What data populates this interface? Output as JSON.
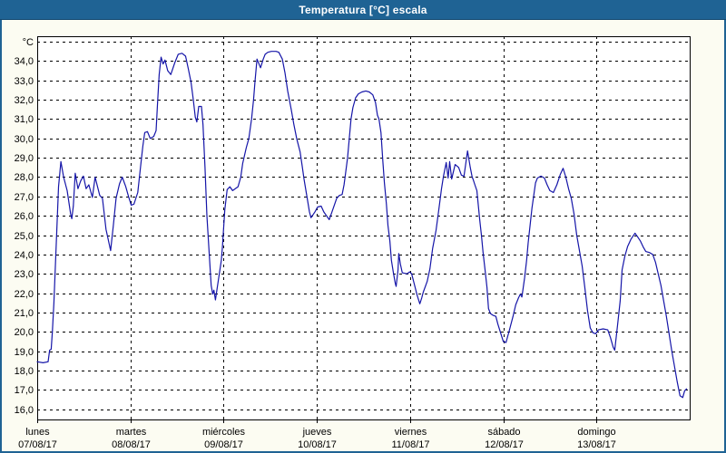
{
  "window": {
    "title": "Temperatura [°C] escala"
  },
  "colors": {
    "titlebar_bg": "#1f6394",
    "titlebar_text": "#ffffff",
    "window_border": "#1f6394",
    "window_bg": "#fcfcf2",
    "plot_bg": "#ffffff",
    "grid": "#000000",
    "frame": "#000000",
    "line": "#1515a8",
    "label_text": "#000000"
  },
  "chart_data": {
    "type": "line",
    "title": "Temperatura [°C] escala",
    "ylabel": "°C",
    "ylim": [
      15.5,
      35.3
    ],
    "xlim_hours": [
      0,
      168
    ],
    "grid": "dashed",
    "legend": "none",
    "yticks": [
      {
        "v": 35,
        "label": "°C"
      },
      {
        "v": 34,
        "label": "34,0"
      },
      {
        "v": 33,
        "label": "33,0"
      },
      {
        "v": 32,
        "label": "32,0"
      },
      {
        "v": 31,
        "label": "31,0"
      },
      {
        "v": 30,
        "label": "30,0"
      },
      {
        "v": 29,
        "label": "29,0"
      },
      {
        "v": 28,
        "label": "28,0"
      },
      {
        "v": 27,
        "label": "27,0"
      },
      {
        "v": 26,
        "label": "26,0"
      },
      {
        "v": 25,
        "label": "25,0"
      },
      {
        "v": 24,
        "label": "24,0"
      },
      {
        "v": 23,
        "label": "23,0"
      },
      {
        "v": 22,
        "label": "22,0"
      },
      {
        "v": 21,
        "label": "21,0"
      },
      {
        "v": 20,
        "label": "20,0"
      },
      {
        "v": 19,
        "label": "19,0"
      },
      {
        "v": 18,
        "label": "18,0"
      },
      {
        "v": 17,
        "label": "17,0"
      },
      {
        "v": 16,
        "label": "16,0"
      }
    ],
    "xticks_days": [
      {
        "name": "lunes",
        "date": "07/08/17"
      },
      {
        "name": "martes",
        "date": "08/08/17"
      },
      {
        "name": "miércoles",
        "date": "09/08/17"
      },
      {
        "name": "jueves",
        "date": "10/08/17"
      },
      {
        "name": "viernes",
        "date": "11/08/17"
      },
      {
        "name": "sábado",
        "date": "12/08/17"
      },
      {
        "name": "domingo",
        "date": "13/08/17"
      }
    ],
    "series": [
      {
        "name": "Temperatura",
        "unit": "°C",
        "points": [
          [
            0,
            18.45
          ],
          [
            1.5,
            18.4
          ],
          [
            2.8,
            18.45
          ],
          [
            3.2,
            19.05
          ],
          [
            3.6,
            19.1
          ],
          [
            3.9,
            20.0
          ],
          [
            4.3,
            21.5
          ],
          [
            4.7,
            23.5
          ],
          [
            5.1,
            25.5
          ],
          [
            5.5,
            27.5
          ],
          [
            6.1,
            28.8
          ],
          [
            6.8,
            28.0
          ],
          [
            7.7,
            27.3
          ],
          [
            8.6,
            26.1
          ],
          [
            8.9,
            25.85
          ],
          [
            9.3,
            26.5
          ],
          [
            9.8,
            28.2
          ],
          [
            10.5,
            27.4
          ],
          [
            11.2,
            27.8
          ],
          [
            11.9,
            28.05
          ],
          [
            12.6,
            27.4
          ],
          [
            13.3,
            27.6
          ],
          [
            14.2,
            26.95
          ],
          [
            14.9,
            28.0
          ],
          [
            16.1,
            27.05
          ],
          [
            16.8,
            26.9
          ],
          [
            17.7,
            25.3
          ],
          [
            18.9,
            24.2
          ],
          [
            19.6,
            25.5
          ],
          [
            20.3,
            26.9
          ],
          [
            21.2,
            27.65
          ],
          [
            21.9,
            28.0
          ],
          [
            22.8,
            27.5
          ],
          [
            23.5,
            27.0
          ],
          [
            24.2,
            26.55
          ],
          [
            24.9,
            26.6
          ],
          [
            25.9,
            27.2
          ],
          [
            26.6,
            28.5
          ],
          [
            27.2,
            29.6
          ],
          [
            27.7,
            30.3
          ],
          [
            28.4,
            30.35
          ],
          [
            29.1,
            30.0
          ],
          [
            30.0,
            30.1
          ],
          [
            30.6,
            30.4
          ],
          [
            31.0,
            31.9
          ],
          [
            31.4,
            33.3
          ],
          [
            31.9,
            34.2
          ],
          [
            32.4,
            33.85
          ],
          [
            32.9,
            34.05
          ],
          [
            33.6,
            33.5
          ],
          [
            34.4,
            33.3
          ],
          [
            35.4,
            33.9
          ],
          [
            36.3,
            34.35
          ],
          [
            37.3,
            34.4
          ],
          [
            38.2,
            34.25
          ],
          [
            38.9,
            33.6
          ],
          [
            39.6,
            32.9
          ],
          [
            40.2,
            32.0
          ],
          [
            40.7,
            31.1
          ],
          [
            41.1,
            30.85
          ],
          [
            41.6,
            31.65
          ],
          [
            42.3,
            31.65
          ],
          [
            42.7,
            30.7
          ],
          [
            43.2,
            28.5
          ],
          [
            43.7,
            26.0
          ],
          [
            44.2,
            24.3
          ],
          [
            44.8,
            22.4
          ],
          [
            45.2,
            21.95
          ],
          [
            45.5,
            22.15
          ],
          [
            45.9,
            21.65
          ],
          [
            46.6,
            22.6
          ],
          [
            47.4,
            23.7
          ],
          [
            47.7,
            24.4
          ],
          [
            48.3,
            26.3
          ],
          [
            48.9,
            27.35
          ],
          [
            49.6,
            27.5
          ],
          [
            50.3,
            27.3
          ],
          [
            51.0,
            27.4
          ],
          [
            51.7,
            27.5
          ],
          [
            52.4,
            28.0
          ],
          [
            52.9,
            28.7
          ],
          [
            53.8,
            29.5
          ],
          [
            54.5,
            30.0
          ],
          [
            55.2,
            31.0
          ],
          [
            55.7,
            32.0
          ],
          [
            56.1,
            33.0
          ],
          [
            56.6,
            34.1
          ],
          [
            57.5,
            33.65
          ],
          [
            58.2,
            34.1
          ],
          [
            58.7,
            34.35
          ],
          [
            59.4,
            34.45
          ],
          [
            60.3,
            34.5
          ],
          [
            61.5,
            34.5
          ],
          [
            62.2,
            34.45
          ],
          [
            63.1,
            34.1
          ],
          [
            63.8,
            33.4
          ],
          [
            64.5,
            32.45
          ],
          [
            65.4,
            31.5
          ],
          [
            66.1,
            30.7
          ],
          [
            66.8,
            30.0
          ],
          [
            67.7,
            29.3
          ],
          [
            68.2,
            28.6
          ],
          [
            68.7,
            27.9
          ],
          [
            69.6,
            26.8
          ],
          [
            70.1,
            26.2
          ],
          [
            70.5,
            25.9
          ],
          [
            71.5,
            26.2
          ],
          [
            72.2,
            26.45
          ],
          [
            73.1,
            26.5
          ],
          [
            73.8,
            26.2
          ],
          [
            74.5,
            26.0
          ],
          [
            75.2,
            25.8
          ],
          [
            75.9,
            26.2
          ],
          [
            76.6,
            26.6
          ],
          [
            77.1,
            26.9
          ],
          [
            77.8,
            27.05
          ],
          [
            78.5,
            27.1
          ],
          [
            79.0,
            27.6
          ],
          [
            79.4,
            28.2
          ],
          [
            79.9,
            29.0
          ],
          [
            80.3,
            29.9
          ],
          [
            80.8,
            31.0
          ],
          [
            81.3,
            31.6
          ],
          [
            82.0,
            32.1
          ],
          [
            82.7,
            32.3
          ],
          [
            83.6,
            32.4
          ],
          [
            84.6,
            32.45
          ],
          [
            85.5,
            32.4
          ],
          [
            86.4,
            32.25
          ],
          [
            87.1,
            31.85
          ],
          [
            87.6,
            31.2
          ],
          [
            88.0,
            31.0
          ],
          [
            88.5,
            30.3
          ],
          [
            89.0,
            28.8
          ],
          [
            89.4,
            27.7
          ],
          [
            89.9,
            26.6
          ],
          [
            90.3,
            25.5
          ],
          [
            90.8,
            24.7
          ],
          [
            91.2,
            23.7
          ],
          [
            91.7,
            23.05
          ],
          [
            92.2,
            22.5
          ],
          [
            92.4,
            22.35
          ],
          [
            92.9,
            23.2
          ],
          [
            93.1,
            24.05
          ],
          [
            93.5,
            23.5
          ],
          [
            94.0,
            23.05
          ],
          [
            95.2,
            23.0
          ],
          [
            95.9,
            23.1
          ],
          [
            96.4,
            23.0
          ],
          [
            97.1,
            22.45
          ],
          [
            97.8,
            21.9
          ],
          [
            98.5,
            21.45
          ],
          [
            99.0,
            21.75
          ],
          [
            99.4,
            22.05
          ],
          [
            100.4,
            22.6
          ],
          [
            101.1,
            23.25
          ],
          [
            101.8,
            24.3
          ],
          [
            102.7,
            25.25
          ],
          [
            103.4,
            26.3
          ],
          [
            104.1,
            27.4
          ],
          [
            104.6,
            28.05
          ],
          [
            105.3,
            28.75
          ],
          [
            105.8,
            27.95
          ],
          [
            106.2,
            28.8
          ],
          [
            106.7,
            27.9
          ],
          [
            107.6,
            28.65
          ],
          [
            108.5,
            28.5
          ],
          [
            109.2,
            28.1
          ],
          [
            109.9,
            28.05
          ],
          [
            110.8,
            29.35
          ],
          [
            111.5,
            28.5
          ],
          [
            112.0,
            28.0
          ],
          [
            112.2,
            27.9
          ],
          [
            112.7,
            27.6
          ],
          [
            113.2,
            27.3
          ],
          [
            113.9,
            25.85
          ],
          [
            114.4,
            24.95
          ],
          [
            114.8,
            24.1
          ],
          [
            115.3,
            23.2
          ],
          [
            115.8,
            22.3
          ],
          [
            116.2,
            21.2
          ],
          [
            116.7,
            20.95
          ],
          [
            117.4,
            20.85
          ],
          [
            118.1,
            20.8
          ],
          [
            118.6,
            20.4
          ],
          [
            119.3,
            19.95
          ],
          [
            120.0,
            19.5
          ],
          [
            120.7,
            19.45
          ],
          [
            121.6,
            20.1
          ],
          [
            122.5,
            20.8
          ],
          [
            123.2,
            21.4
          ],
          [
            123.9,
            21.75
          ],
          [
            124.4,
            21.95
          ],
          [
            124.8,
            21.8
          ],
          [
            125.5,
            22.8
          ],
          [
            126.0,
            23.7
          ],
          [
            126.4,
            24.6
          ],
          [
            126.9,
            25.5
          ],
          [
            127.4,
            26.4
          ],
          [
            127.8,
            27.0
          ],
          [
            128.3,
            27.7
          ],
          [
            128.8,
            27.95
          ],
          [
            129.7,
            28.05
          ],
          [
            130.6,
            27.95
          ],
          [
            131.3,
            27.6
          ],
          [
            132.0,
            27.3
          ],
          [
            132.9,
            27.2
          ],
          [
            133.8,
            27.6
          ],
          [
            134.7,
            28.15
          ],
          [
            135.4,
            28.45
          ],
          [
            136.1,
            28.0
          ],
          [
            136.8,
            27.4
          ],
          [
            137.5,
            26.9
          ],
          [
            138.2,
            26.1
          ],
          [
            138.9,
            25.0
          ],
          [
            139.6,
            24.2
          ],
          [
            140.3,
            23.4
          ],
          [
            141.0,
            22.3
          ],
          [
            141.7,
            21.1
          ],
          [
            142.4,
            20.2
          ],
          [
            143.1,
            19.95
          ],
          [
            143.8,
            19.9
          ],
          [
            144.5,
            20.1
          ],
          [
            145.7,
            20.15
          ],
          [
            146.9,
            20.1
          ],
          [
            147.6,
            19.7
          ],
          [
            148.3,
            19.2
          ],
          [
            148.7,
            19.05
          ],
          [
            149.4,
            20.3
          ],
          [
            150.1,
            21.6
          ],
          [
            150.6,
            23.2
          ],
          [
            151.3,
            23.9
          ],
          [
            152.0,
            24.4
          ],
          [
            152.9,
            24.8
          ],
          [
            153.9,
            25.1
          ],
          [
            154.6,
            24.9
          ],
          [
            155.3,
            24.7
          ],
          [
            156.0,
            24.4
          ],
          [
            156.7,
            24.15
          ],
          [
            157.6,
            24.1
          ],
          [
            158.5,
            24.0
          ],
          [
            159.2,
            23.6
          ],
          [
            159.9,
            23.0
          ],
          [
            160.6,
            22.4
          ],
          [
            161.3,
            21.6
          ],
          [
            162.0,
            20.8
          ],
          [
            162.7,
            19.9
          ],
          [
            163.4,
            19.0
          ],
          [
            164.1,
            18.2
          ],
          [
            164.8,
            17.4
          ],
          [
            165.5,
            16.7
          ],
          [
            166.2,
            16.6
          ],
          [
            166.7,
            16.95
          ],
          [
            167.2,
            17.05
          ]
        ]
      }
    ]
  }
}
